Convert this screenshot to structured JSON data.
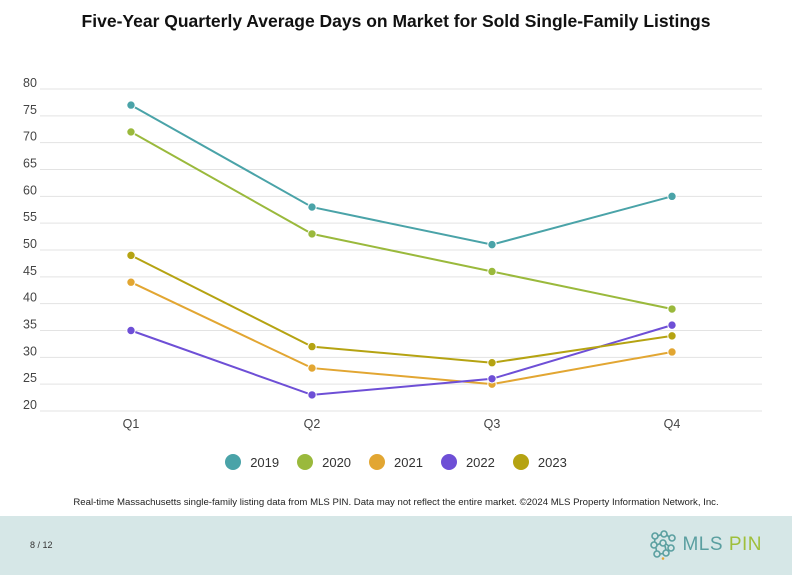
{
  "chart_data": {
    "type": "line",
    "title": "Five-Year Quarterly Average Days on Market for Sold Single-Family Listings",
    "xlabel": "",
    "ylabel": "",
    "categories": [
      "Q1",
      "Q2",
      "Q3",
      "Q4"
    ],
    "ylim": [
      20,
      80
    ],
    "yticks": [
      20,
      25,
      30,
      35,
      40,
      45,
      50,
      55,
      60,
      65,
      70,
      75,
      80
    ],
    "grid": true,
    "legend_position": "bottom",
    "series": [
      {
        "name": "2019",
        "color": "#4aa3a8",
        "values": [
          77,
          58,
          51,
          60
        ]
      },
      {
        "name": "2020",
        "color": "#9ab93c",
        "values": [
          72,
          53,
          46,
          39
        ]
      },
      {
        "name": "2021",
        "color": "#e2a632",
        "values": [
          44,
          28,
          25,
          31
        ]
      },
      {
        "name": "2022",
        "color": "#6e4fd6",
        "values": [
          35,
          23,
          26,
          36
        ]
      },
      {
        "name": "2023",
        "color": "#b5a312",
        "values": [
          49,
          32,
          29,
          34
        ]
      }
    ]
  },
  "source_note": "Real-time Massachusetts single-family listing data from MLS PIN. Data may not reflect the entire market. ©2024 MLS Property Information Network, Inc.",
  "footer": {
    "page": "8 / 12",
    "logo_main": "MLS",
    "logo_accent": "PIN",
    "logo_icon": "network-cluster-icon"
  }
}
